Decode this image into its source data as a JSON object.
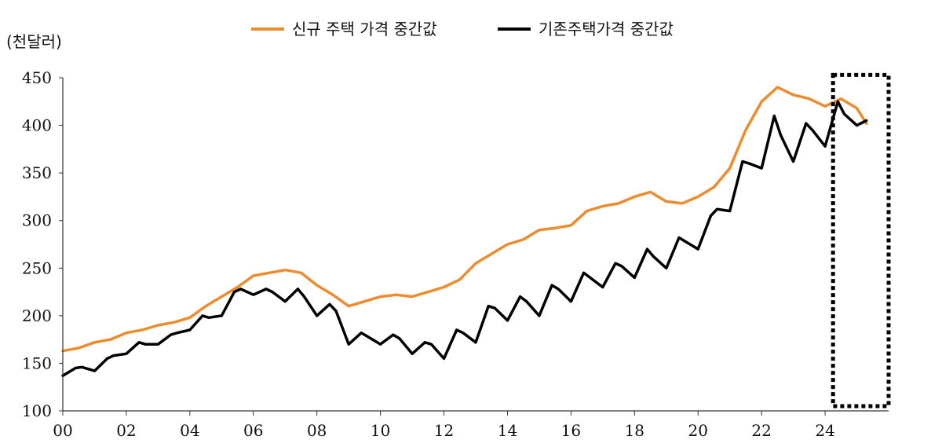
{
  "chart_data": {
    "type": "line",
    "ylabel": "(천달러)",
    "ylim": [
      100,
      450
    ],
    "yticks": [
      "100",
      "150",
      "200",
      "250",
      "300",
      "350",
      "400",
      "450"
    ],
    "xlim": [
      2000,
      2026
    ],
    "xticks": [
      "00",
      "02",
      "04",
      "06",
      "08",
      "10",
      "12",
      "14",
      "16",
      "18",
      "20",
      "22",
      "24"
    ],
    "grid": false,
    "legend_position": "top-center",
    "highlight_box": {
      "x_range": [
        2024.25,
        2026
      ],
      "y_range": [
        105,
        453
      ],
      "style": "dotted"
    },
    "series": [
      {
        "name": "신규 주택 가격 중간값",
        "color": "#ED8B2F",
        "x": [
          2000.0,
          2000.5,
          2001.0,
          2001.5,
          2002.0,
          2002.5,
          2003.0,
          2003.5,
          2004.0,
          2004.5,
          2005.0,
          2005.5,
          2006.0,
          2006.5,
          2007.0,
          2007.5,
          2008.0,
          2008.5,
          2009.0,
          2009.5,
          2010.0,
          2010.5,
          2011.0,
          2011.5,
          2012.0,
          2012.5,
          2013.0,
          2013.5,
          2014.0,
          2014.5,
          2015.0,
          2015.5,
          2016.0,
          2016.5,
          2017.0,
          2017.5,
          2018.0,
          2018.5,
          2019.0,
          2019.5,
          2020.0,
          2020.5,
          2021.0,
          2021.5,
          2022.0,
          2022.5,
          2023.0,
          2023.5,
          2024.0,
          2024.5,
          2025.0,
          2025.3
        ],
        "y": [
          163,
          166,
          172,
          175,
          182,
          185,
          190,
          193,
          198,
          210,
          220,
          230,
          242,
          245,
          248,
          245,
          232,
          222,
          210,
          215,
          220,
          222,
          220,
          225,
          230,
          238,
          255,
          265,
          275,
          280,
          290,
          292,
          295,
          310,
          315,
          318,
          325,
          330,
          320,
          318,
          325,
          335,
          355,
          395,
          425,
          440,
          432,
          428,
          420,
          428,
          418,
          402
        ]
      },
      {
        "name": "기존주택가격 중간값",
        "color": "#000000",
        "x": [
          2000.0,
          2000.4,
          2000.6,
          2001.0,
          2001.4,
          2001.6,
          2002.0,
          2002.4,
          2002.6,
          2003.0,
          2003.4,
          2003.6,
          2004.0,
          2004.4,
          2004.6,
          2005.0,
          2005.4,
          2005.6,
          2006.0,
          2006.4,
          2006.6,
          2007.0,
          2007.4,
          2007.6,
          2008.0,
          2008.4,
          2008.6,
          2009.0,
          2009.4,
          2009.6,
          2010.0,
          2010.4,
          2010.6,
          2011.0,
          2011.4,
          2011.6,
          2012.0,
          2012.4,
          2012.6,
          2013.0,
          2013.4,
          2013.6,
          2014.0,
          2014.4,
          2014.6,
          2015.0,
          2015.4,
          2015.6,
          2016.0,
          2016.4,
          2016.6,
          2017.0,
          2017.4,
          2017.6,
          2018.0,
          2018.4,
          2018.6,
          2019.0,
          2019.4,
          2019.6,
          2020.0,
          2020.4,
          2020.6,
          2021.0,
          2021.4,
          2021.6,
          2022.0,
          2022.4,
          2022.6,
          2023.0,
          2023.4,
          2023.6,
          2024.0,
          2024.4,
          2024.6,
          2025.0,
          2025.3
        ],
        "y": [
          137,
          145,
          146,
          142,
          155,
          158,
          160,
          172,
          170,
          170,
          180,
          182,
          185,
          200,
          198,
          200,
          225,
          228,
          222,
          228,
          225,
          215,
          228,
          220,
          200,
          212,
          205,
          170,
          182,
          178,
          170,
          180,
          176,
          160,
          172,
          170,
          155,
          185,
          182,
          172,
          210,
          208,
          195,
          220,
          215,
          200,
          232,
          228,
          215,
          245,
          240,
          230,
          255,
          252,
          240,
          270,
          262,
          250,
          282,
          278,
          270,
          305,
          312,
          310,
          362,
          360,
          355,
          410,
          390,
          362,
          402,
          395,
          378,
          425,
          412,
          400,
          405
        ]
      }
    ]
  }
}
